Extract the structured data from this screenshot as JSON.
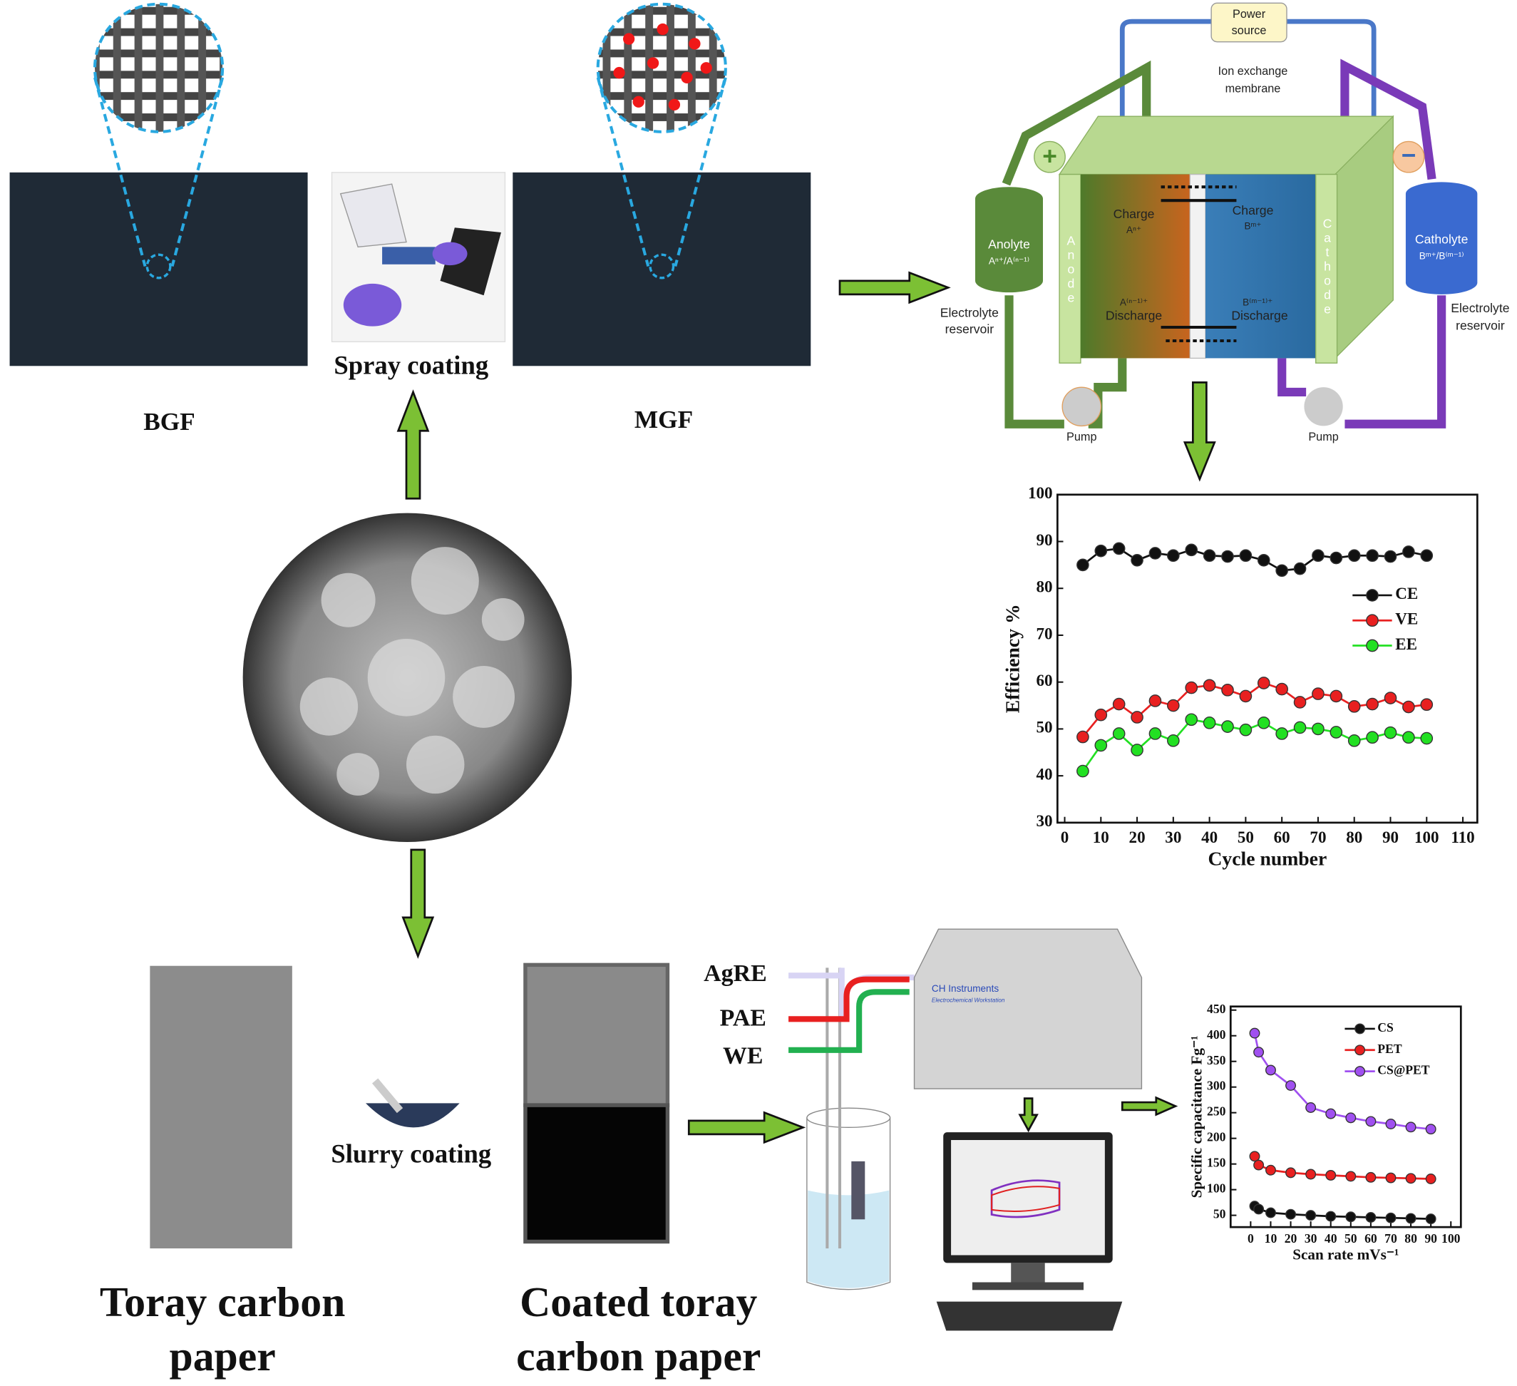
{
  "panels": {
    "bgf": "BGF",
    "mgf": "MGF",
    "spray": "Spray coating",
    "slurry": "Slurry coating",
    "toray": [
      "Toray carbon",
      "paper"
    ],
    "coated": [
      "Coated toray",
      "carbon paper"
    ]
  },
  "battery": {
    "power": [
      "Power",
      "source"
    ],
    "membrane": [
      "Ion exchange",
      "membrane"
    ],
    "plus": "+",
    "minus": "−",
    "anolyte": [
      "Anolyte",
      "Aⁿ⁺/A⁽ⁿ⁻¹⁾"
    ],
    "catholyte": [
      "Catholyte",
      "Bᵐ⁺/B⁽ᵐ⁻¹⁾"
    ],
    "reservoir_left": [
      "Electrolyte",
      "reservoir"
    ],
    "reservoir_right": [
      "Electrolyte",
      "reservoir"
    ],
    "anode": "Anode",
    "cathode": "Cathode",
    "charge_left": [
      "Charge",
      "Aⁿ⁺"
    ],
    "discharge_left": [
      "A⁽ⁿ⁻¹⁾⁺",
      "Discharge"
    ],
    "charge_right": [
      "Charge",
      "Bᵐ⁺"
    ],
    "discharge_right": [
      "B⁽ᵐ⁻¹⁾⁺",
      "Discharge"
    ],
    "pump_left": "Pump",
    "pump_right": "Pump"
  },
  "electrochem": {
    "electrodes": [
      "AgRE",
      "PAE",
      "WE"
    ],
    "instrument": [
      "CH Instruments",
      "Electrochemical Workstation"
    ]
  },
  "chart_data": [
    {
      "type": "line",
      "x_label": "Cycle number",
      "y_label": "Efficiency %",
      "x": [
        5,
        10,
        15,
        20,
        25,
        30,
        35,
        40,
        45,
        50,
        55,
        60,
        65,
        70,
        75,
        80,
        85,
        90,
        95,
        100
      ],
      "series": [
        {
          "name": "CE",
          "color": "#111111",
          "values": [
            85,
            88,
            88.5,
            86,
            87.5,
            87,
            88.2,
            87,
            86.8,
            87,
            86,
            83.8,
            84.2,
            87,
            86.5,
            87,
            87,
            86.8,
            87.8,
            87
          ]
        },
        {
          "name": "VE",
          "color": "#e82020",
          "values": [
            48.3,
            53,
            55.3,
            52.5,
            56,
            55,
            58.8,
            59.3,
            58.3,
            57,
            59.8,
            58.5,
            55.7,
            57.5,
            57,
            54.8,
            55.3,
            56.6,
            54.7,
            55.2
          ]
        },
        {
          "name": "EE",
          "color": "#22e022",
          "values": [
            41,
            46.5,
            49,
            45.5,
            49,
            47.5,
            52,
            51.3,
            50.5,
            49.8,
            51.3,
            49,
            50.3,
            50,
            49.3,
            47.5,
            48.2,
            49.2,
            48.2,
            48
          ]
        }
      ],
      "xlim": [
        -2,
        114
      ],
      "xticks": [
        0,
        10,
        20,
        30,
        40,
        50,
        60,
        70,
        80,
        90,
        100,
        110
      ],
      "ylim": [
        30,
        100
      ],
      "yticks": [
        30,
        40,
        50,
        60,
        70,
        80,
        90,
        100
      ],
      "legend": "right"
    },
    {
      "type": "line",
      "x_label": "Scan rate mVs⁻¹",
      "y_label": "Specific capacitance Fg⁻¹",
      "x": [
        2,
        4,
        10,
        20,
        30,
        40,
        50,
        60,
        70,
        80,
        90
      ],
      "series": [
        {
          "name": "CS",
          "color": "#111111",
          "values": [
            68,
            62,
            55,
            52,
            50,
            48,
            47,
            46,
            45,
            44,
            43
          ]
        },
        {
          "name": "PET",
          "color": "#e82020",
          "values": [
            165,
            148,
            138,
            133,
            130,
            128,
            126,
            124,
            123,
            122,
            121
          ]
        },
        {
          "name": "CS@PET",
          "color": "#a050f0",
          "values": [
            405,
            368,
            333,
            303,
            260,
            248,
            240,
            233,
            228,
            222,
            218
          ]
        }
      ],
      "xlim": [
        -10,
        105
      ],
      "xticks": [
        0,
        10,
        20,
        30,
        40,
        50,
        60,
        70,
        80,
        90,
        100
      ],
      "ylim": [
        27,
        457
      ],
      "yticks": [
        50,
        100,
        150,
        200,
        250,
        300,
        350,
        400,
        450
      ],
      "legend": "upper right"
    }
  ]
}
